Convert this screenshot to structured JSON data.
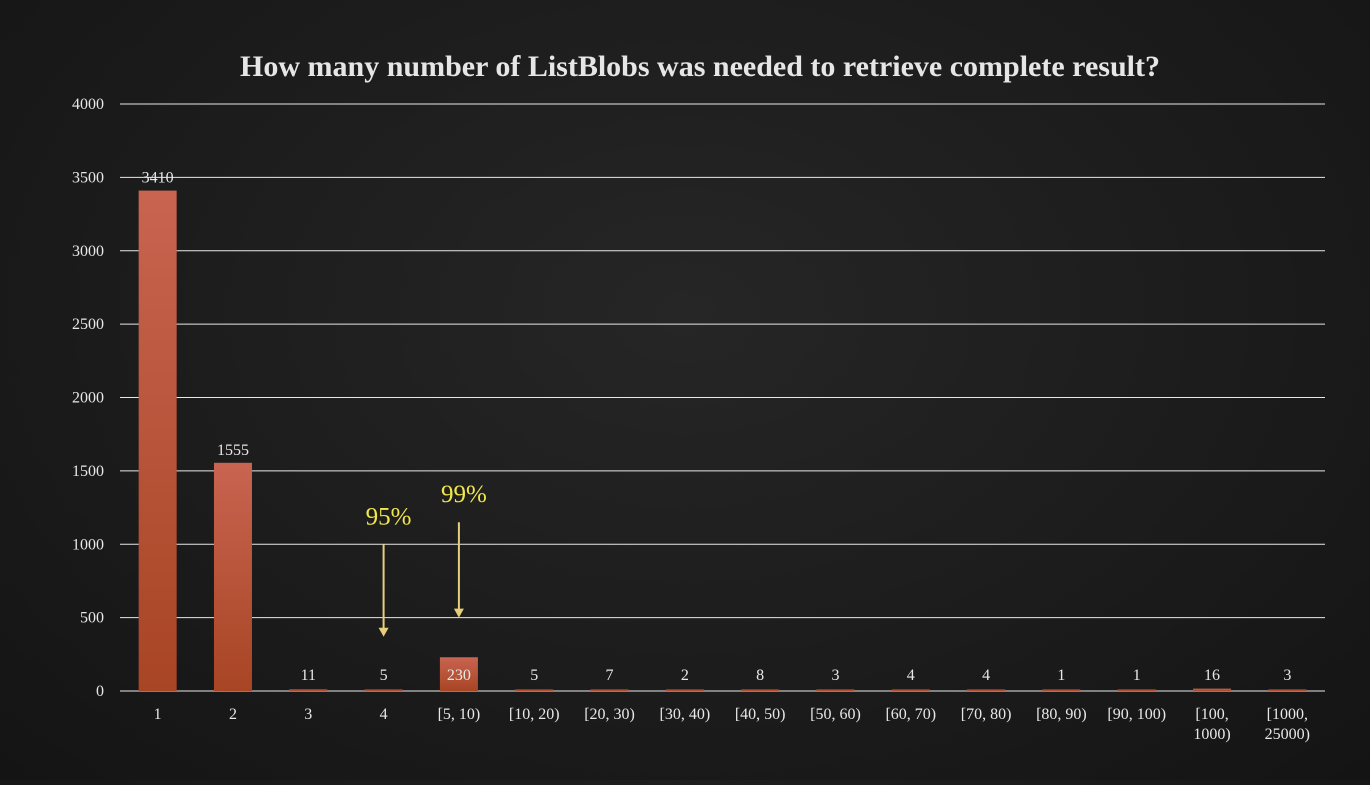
{
  "colors": {
    "bar_top": "#c86450",
    "bar_bottom": "#a84524",
    "annotation": "#f2e84a",
    "arrow": "#e6cf7a",
    "grid": "#e8e8e8",
    "text": "#e8e8e8"
  },
  "chart_data": {
    "type": "bar",
    "title": "How many number of ListBlobs was needed to retrieve complete result?",
    "xlabel": "",
    "ylabel": "",
    "ylim": [
      0,
      4000
    ],
    "yticks": [
      0,
      500,
      1000,
      1500,
      2000,
      2500,
      3000,
      3500,
      4000
    ],
    "grid": true,
    "legend": "none",
    "categories": [
      "1",
      "2",
      "3",
      "4",
      "[5, 10)",
      "[10, 20)",
      "[20, 30)",
      "[30, 40)",
      "[40, 50)",
      "[50, 60)",
      "[60, 70)",
      "[70, 80)",
      "[80, 90)",
      "[90, 100)",
      "[100, 1000)",
      "[1000, 25000)"
    ],
    "values": [
      3410,
      1555,
      11,
      5,
      230,
      5,
      7,
      2,
      8,
      3,
      4,
      4,
      1,
      1,
      16,
      3
    ],
    "annotations": [
      {
        "text": "95%",
        "category": "4",
        "arrow_from": 1000,
        "arrow_to": 370
      },
      {
        "text": "99%",
        "category": "[5, 10)",
        "arrow_from": 1150,
        "arrow_to": 500
      }
    ]
  }
}
